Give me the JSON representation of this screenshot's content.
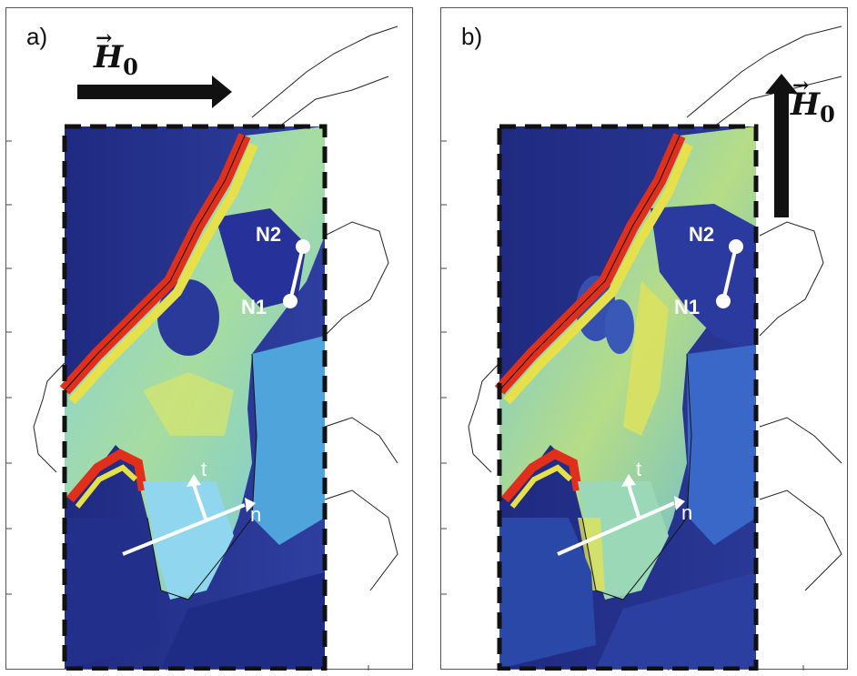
{
  "panels": [
    {
      "label": "a)",
      "field_direction": "east",
      "field_symbol": "H",
      "field_subscript": "0",
      "stations": [
        "N2",
        "N1"
      ],
      "axes": [
        "t",
        "n"
      ]
    },
    {
      "label": "b)",
      "field_direction": "north",
      "field_symbol": "H",
      "field_subscript": "0",
      "stations": [
        "N2",
        "N1"
      ],
      "axes": [
        "t",
        "n"
      ]
    }
  ],
  "colors": {
    "deep_blue": "#1f2a80",
    "mid_blue": "#2f6fd0",
    "cyan": "#5fc8ee",
    "yellow": "#e6e04a",
    "red": "#e0301c",
    "white_overlay": "#ffffff"
  }
}
